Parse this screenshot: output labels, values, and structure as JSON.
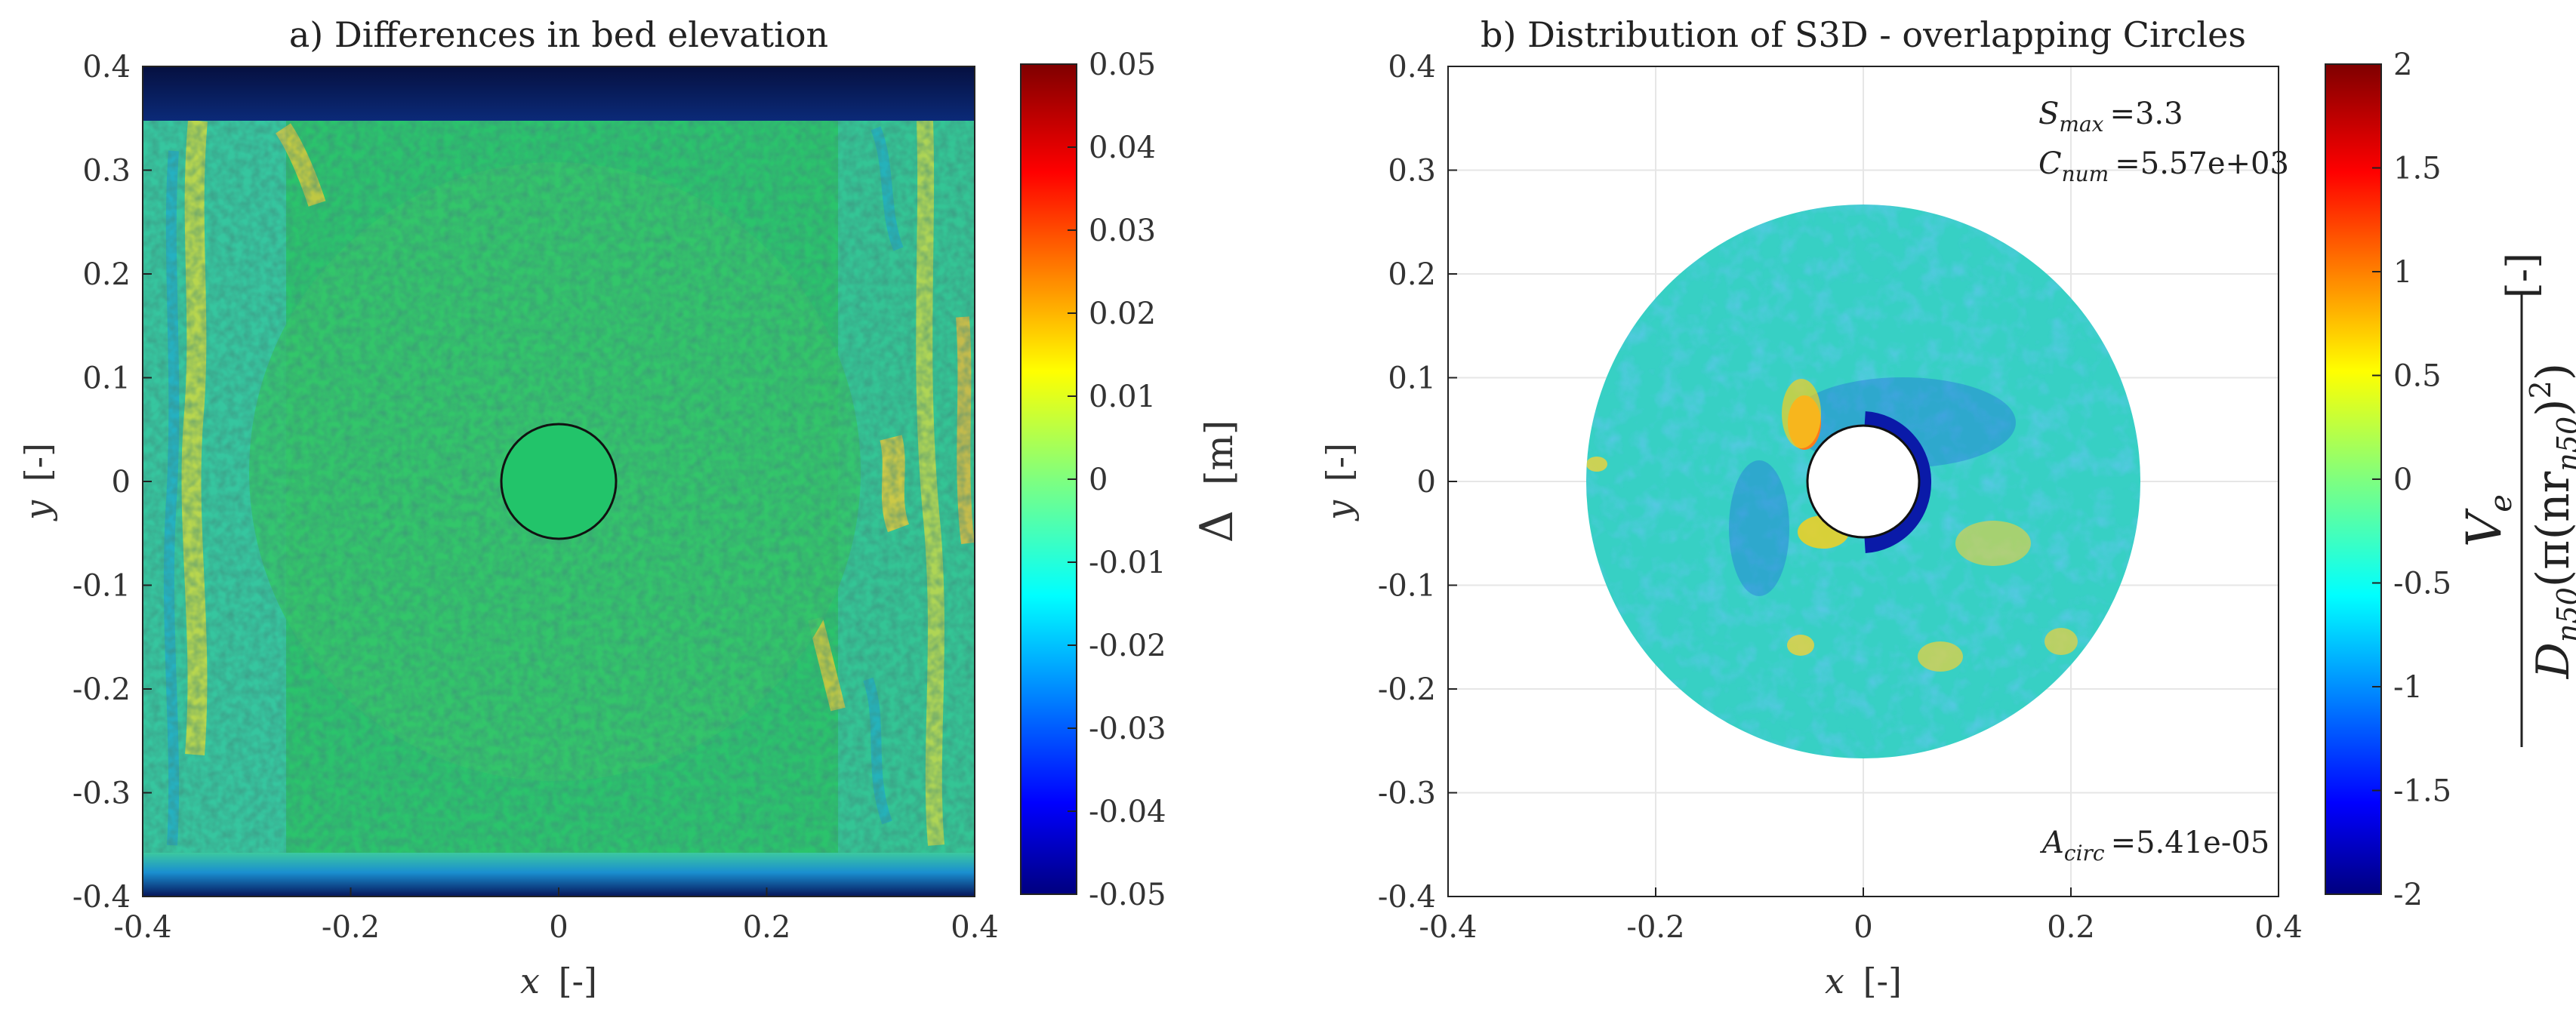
{
  "chart_data": [
    {
      "type": "heatmap",
      "title": "a) Differences in bed elevation",
      "xlabel_var": "x",
      "xlabel_unit": "[-]",
      "ylabel_var": "y",
      "ylabel_unit": "[-]",
      "xlim": [
        -0.4,
        0.4
      ],
      "ylim": [
        -0.4,
        0.4
      ],
      "xticks": [
        -0.4,
        -0.2,
        0,
        0.2,
        0.4
      ],
      "xtick_labels": [
        "-0.4",
        "-0.2",
        "0",
        "0.2",
        "0.4"
      ],
      "yticks": [
        0.4,
        0.3,
        0.2,
        0.1,
        0,
        -0.1,
        -0.2,
        -0.3,
        -0.4
      ],
      "ytick_labels": [
        "0.4",
        "0.3",
        "0.2",
        "0.1",
        "0",
        "-0.1",
        "-0.2",
        "-0.3",
        "-0.4"
      ],
      "pile": {
        "center": [
          0,
          0
        ],
        "radius": 0.055
      },
      "colorbar": {
        "label_symbol": "Δ",
        "label_unit": "[m]",
        "range": [
          -0.05,
          0.05
        ],
        "ticks": [
          0.05,
          0.04,
          0.03,
          0.02,
          0.01,
          0,
          -0.01,
          -0.02,
          -0.03,
          -0.04,
          -0.05
        ],
        "tick_labels": [
          "0.05",
          "0.04",
          "0.03",
          "0.02",
          "0.01",
          "0",
          "-0.01",
          "-0.02",
          "-0.03",
          "-0.04",
          "-0.05"
        ]
      }
    },
    {
      "type": "heatmap",
      "title": "b) Distribution of S3D - overlapping Circles",
      "xlabel_var": "x",
      "xlabel_unit": "[-]",
      "ylabel_var": "y",
      "ylabel_unit": "[-]",
      "xlim": [
        -0.4,
        0.4
      ],
      "ylim": [
        -0.4,
        0.4
      ],
      "grid": true,
      "xticks": [
        -0.4,
        -0.2,
        0,
        0.2,
        0.4
      ],
      "xtick_labels": [
        "-0.4",
        "-0.2",
        "0",
        "0.2",
        "0.4"
      ],
      "yticks": [
        0.4,
        0.3,
        0.2,
        0.1,
        0,
        -0.1,
        -0.2,
        -0.3,
        -0.4
      ],
      "ytick_labels": [
        "0.4",
        "0.3",
        "0.2",
        "0.1",
        "0",
        "-0.1",
        "-0.2",
        "-0.3",
        "-0.4"
      ],
      "annulus": {
        "center": [
          0,
          0
        ],
        "outer_radius": 0.267,
        "inner_radius": 0.054
      },
      "annotations": {
        "smax_symbol": "S",
        "smax_sub": "max",
        "smax_value": "=3.3",
        "cnum_symbol": "C",
        "cnum_sub": "num",
        "cnum_value": "=5.57e+03",
        "acirc_symbol": "A",
        "acirc_sub": "circ",
        "acirc_value": "=5.41e-05"
      },
      "colorbar": {
        "label_numerator": "V",
        "label_numerator_sub": "e",
        "label_denominator": "D",
        "label_denominator_sub": "n50",
        "label_denominator_rest": "(π(nr",
        "label_denominator_rest_sub": "n50",
        "label_denominator_tail": ")",
        "label_power": "2",
        "label_close": ")",
        "label_unit": "[-]",
        "range": [
          -2,
          2
        ],
        "ticks": [
          2,
          1.5,
          1,
          0.5,
          0,
          -0.5,
          -1,
          -1.5,
          -2
        ],
        "tick_labels": [
          "2",
          "1.5",
          "1",
          "0.5",
          "0",
          "-0.5",
          "-1",
          "-1.5",
          "-2"
        ]
      }
    }
  ],
  "colors": {
    "jet": [
      "#00007f",
      "#0000ff",
      "#007fff",
      "#00ffff",
      "#7fff7f",
      "#ffff00",
      "#ff7f00",
      "#ff0000",
      "#7f0000"
    ],
    "field_green": "#2ec86a",
    "field_teal": "#35c9b3",
    "annulus_cyan": "#37d3c8",
    "dark_navy": "#0a1a52"
  }
}
